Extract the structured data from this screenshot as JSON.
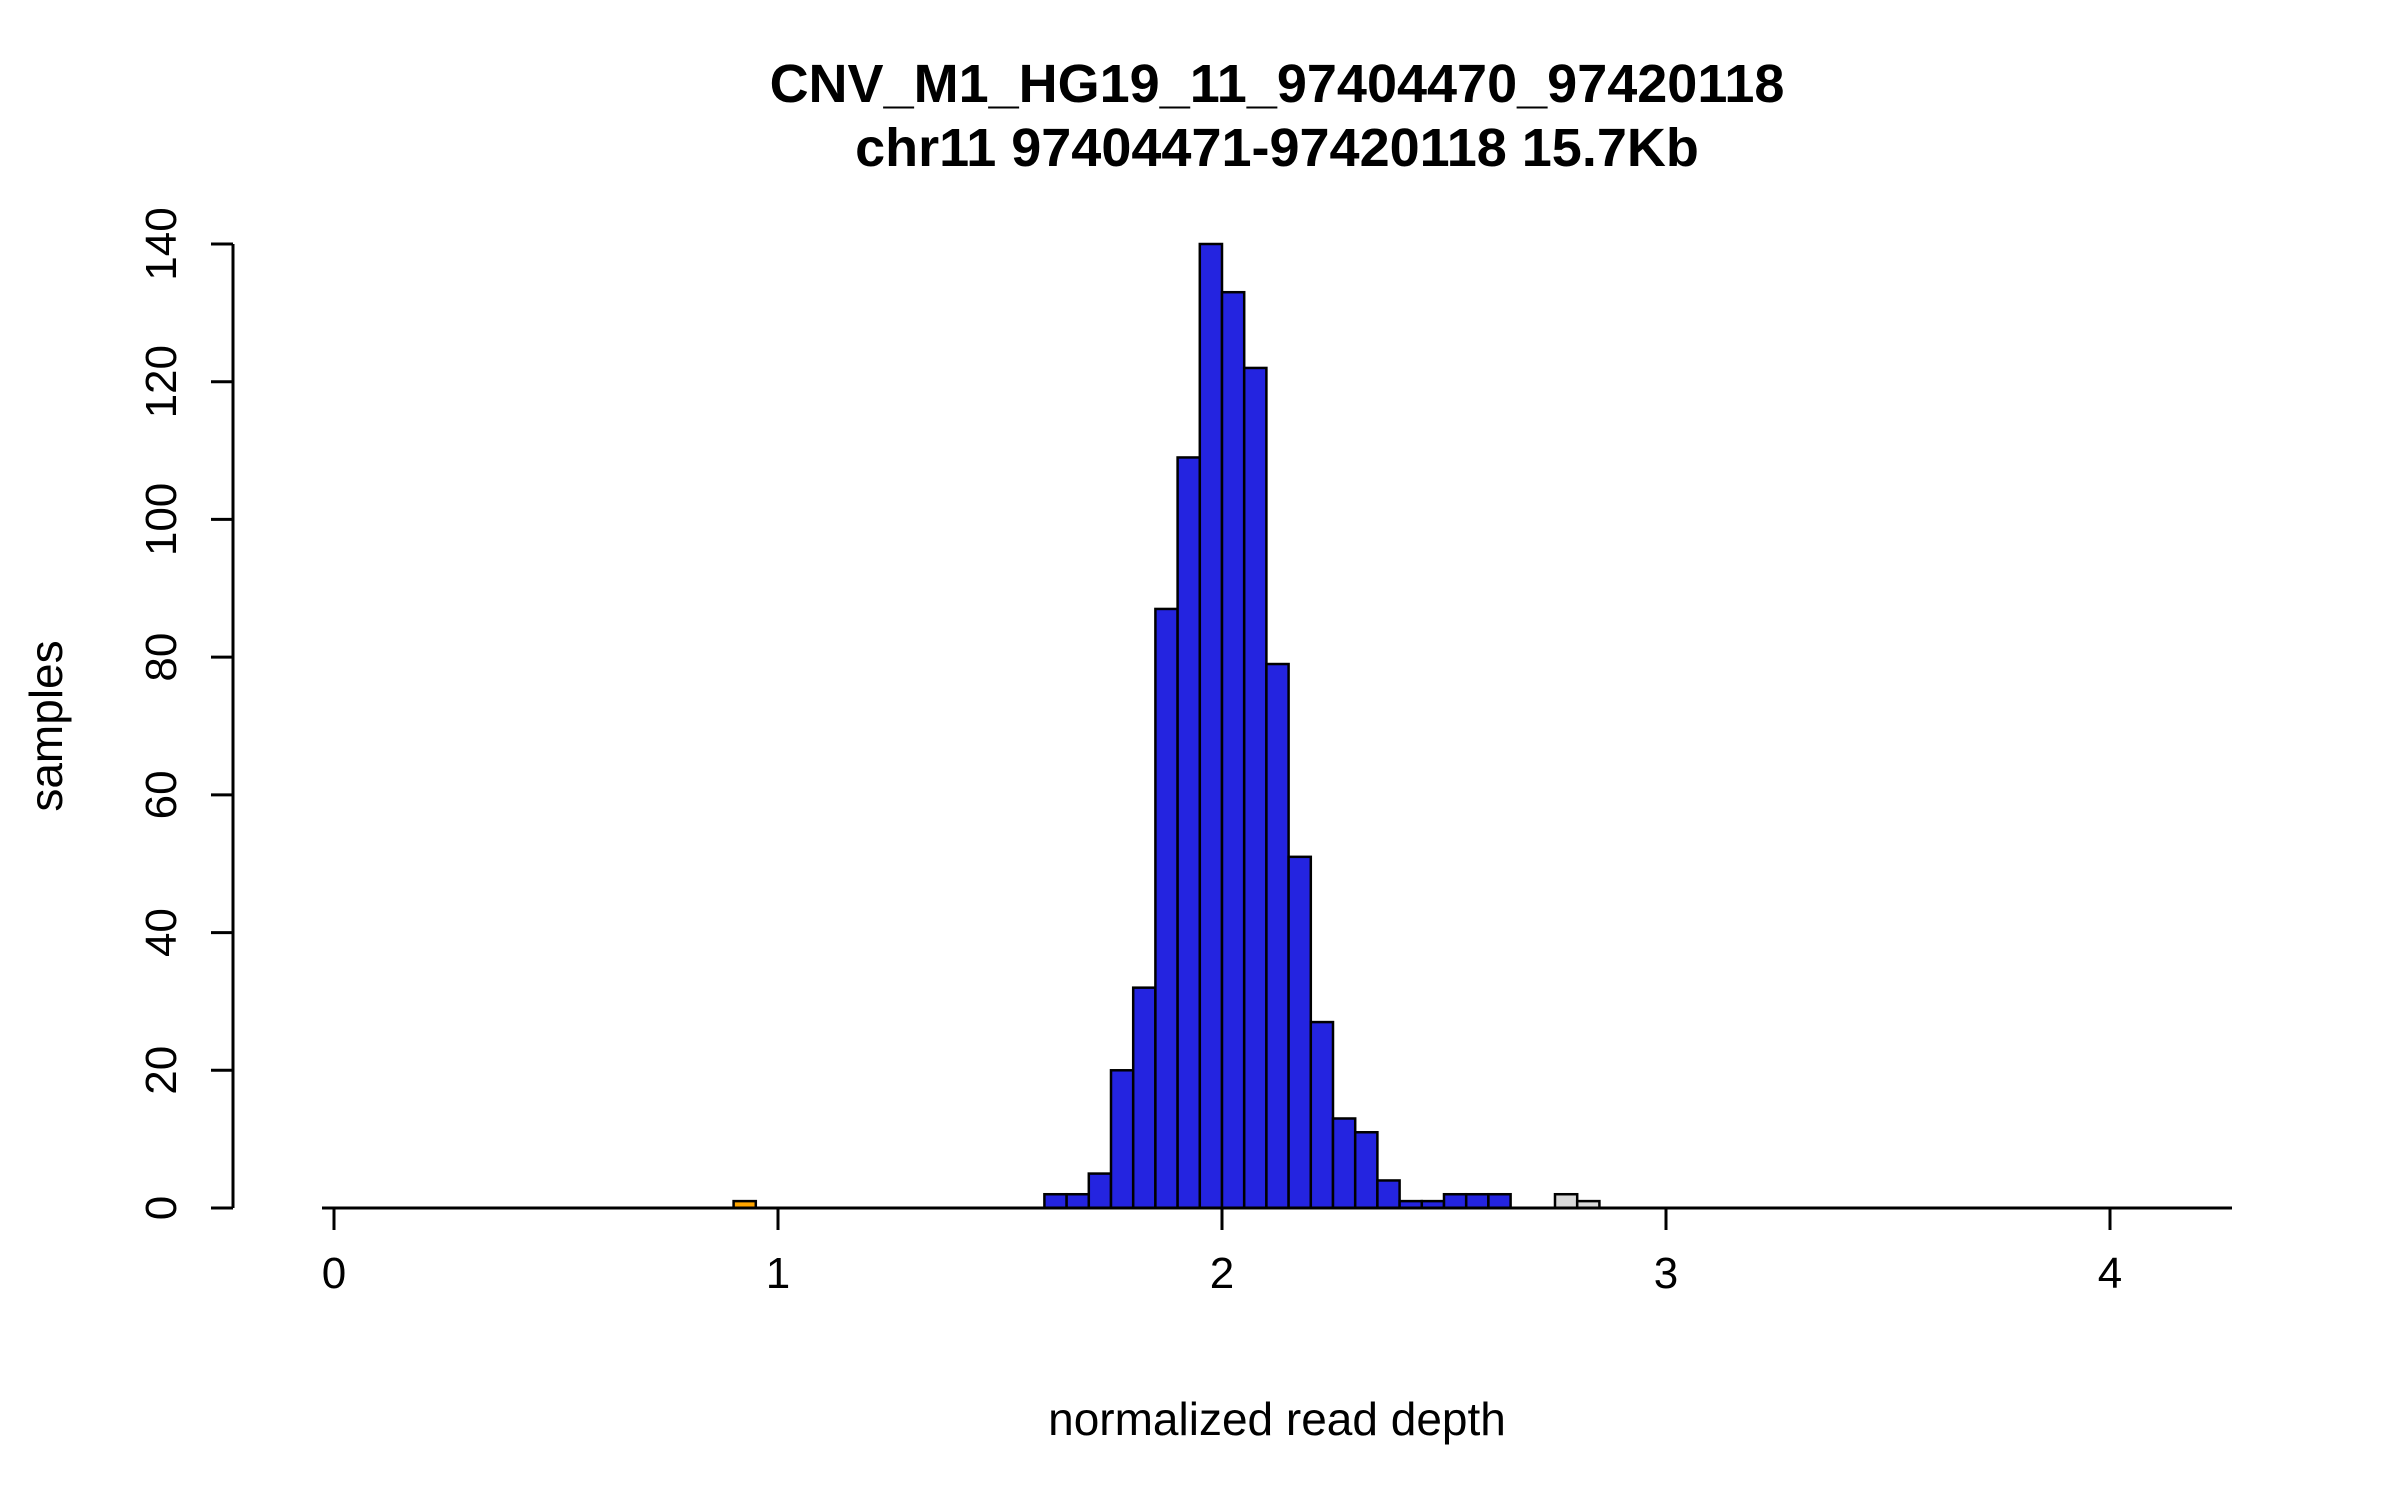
{
  "page": {
    "background": "#ffffff"
  },
  "chart_data": {
    "type": "bar",
    "subtype": "histogram",
    "title": "CNV_M1_HG19_11_97404470_97420118",
    "subtitle": "chr11 97404471-97420118 15.7Kb",
    "xlabel": "normalized read depth",
    "ylabel": "samples",
    "xlim": [
      0,
      4.3
    ],
    "ylim": [
      0,
      140
    ],
    "x_ticks": [
      0,
      1,
      2,
      3,
      4
    ],
    "y_ticks": [
      0,
      20,
      40,
      60,
      80,
      100,
      120,
      140
    ],
    "bin_width": 0.05,
    "grid": false,
    "legend": "none",
    "colors": {
      "diploid_fill": "#2424e0",
      "loss_fill": "#ffa500",
      "outlier_fill": "#d9d9d9",
      "bar_stroke": "#000000",
      "axis": "#000000"
    },
    "bars": [
      {
        "x": 0.9,
        "count": 1,
        "color": "#ffa500"
      },
      {
        "x": 1.6,
        "count": 2,
        "color": "#2424e0"
      },
      {
        "x": 1.65,
        "count": 2,
        "color": "#2424e0"
      },
      {
        "x": 1.7,
        "count": 5,
        "color": "#2424e0"
      },
      {
        "x": 1.75,
        "count": 20,
        "color": "#2424e0"
      },
      {
        "x": 1.8,
        "count": 32,
        "color": "#2424e0"
      },
      {
        "x": 1.85,
        "count": 87,
        "color": "#2424e0"
      },
      {
        "x": 1.9,
        "count": 109,
        "color": "#2424e0"
      },
      {
        "x": 1.95,
        "count": 140,
        "color": "#2424e0"
      },
      {
        "x": 2.0,
        "count": 133,
        "color": "#2424e0"
      },
      {
        "x": 2.05,
        "count": 122,
        "color": "#2424e0"
      },
      {
        "x": 2.1,
        "count": 79,
        "color": "#2424e0"
      },
      {
        "x": 2.15,
        "count": 51,
        "color": "#2424e0"
      },
      {
        "x": 2.2,
        "count": 27,
        "color": "#2424e0"
      },
      {
        "x": 2.25,
        "count": 13,
        "color": "#2424e0"
      },
      {
        "x": 2.3,
        "count": 11,
        "color": "#2424e0"
      },
      {
        "x": 2.35,
        "count": 4,
        "color": "#2424e0"
      },
      {
        "x": 2.4,
        "count": 1,
        "color": "#2424e0"
      },
      {
        "x": 2.45,
        "count": 1,
        "color": "#2424e0"
      },
      {
        "x": 2.5,
        "count": 2,
        "color": "#2424e0"
      },
      {
        "x": 2.55,
        "count": 2,
        "color": "#2424e0"
      },
      {
        "x": 2.6,
        "count": 2,
        "color": "#2424e0"
      },
      {
        "x": 2.75,
        "count": 2,
        "color": "#d9d9d9"
      },
      {
        "x": 2.8,
        "count": 1,
        "color": "#d9d9d9"
      }
    ]
  }
}
